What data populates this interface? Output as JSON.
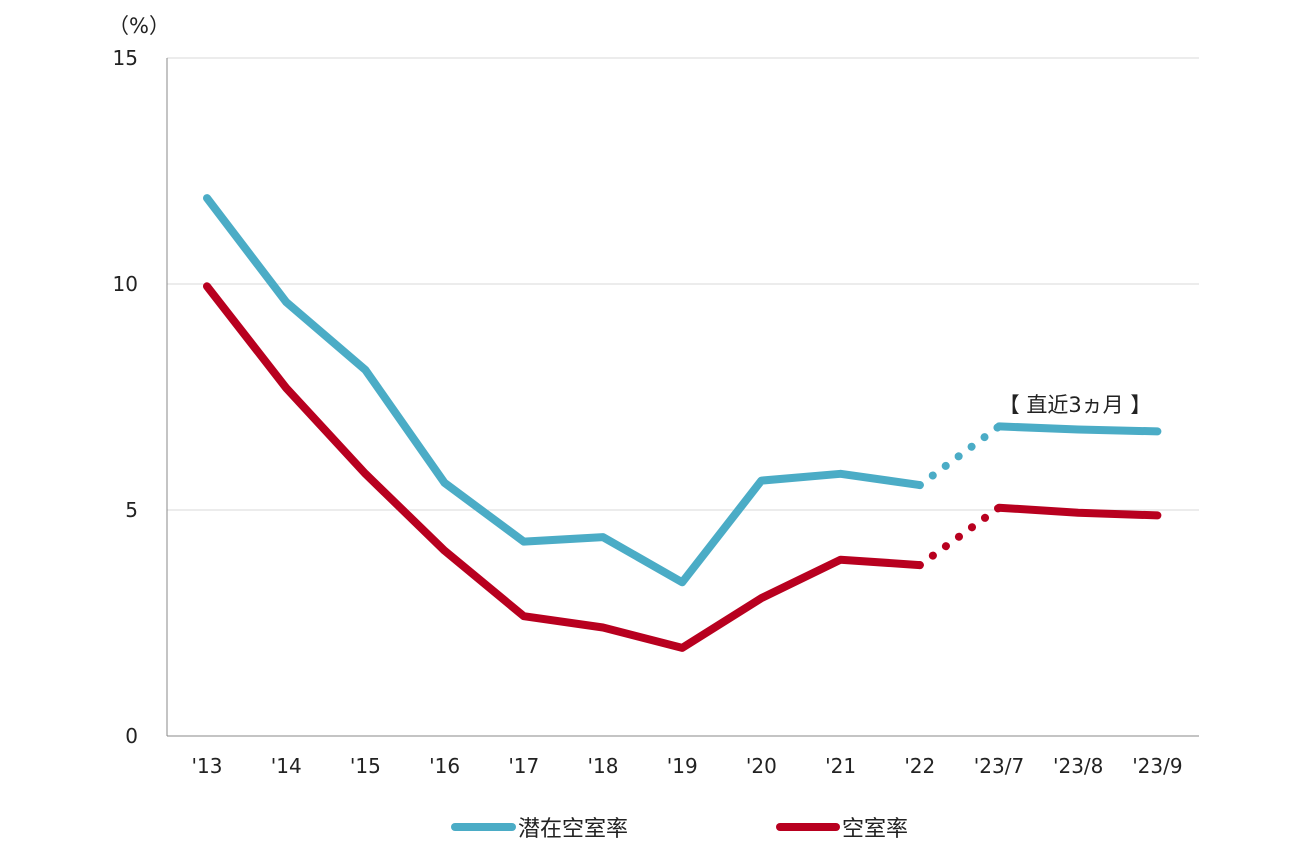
{
  "chart_data": {
    "type": "line",
    "unit_label": "（%）",
    "categories": [
      "'13",
      "'14",
      "'15",
      "'16",
      "'17",
      "'18",
      "'19",
      "'20",
      "'21",
      "'22",
      "'23/7",
      "'23/8",
      "'23/9"
    ],
    "ylim": [
      0,
      15
    ],
    "yticks": [
      0,
      5,
      10,
      15
    ],
    "grid": true,
    "legend_position": "bottom",
    "series": [
      {
        "name": "潜在空室率",
        "color": "#4BACC6",
        "values": [
          11.9,
          9.6,
          8.1,
          5.6,
          4.3,
          4.4,
          3.4,
          5.65,
          5.8,
          5.55,
          6.85,
          6.78,
          6.74
        ]
      },
      {
        "name": "空室率",
        "color": "#B8001F",
        "values": [
          9.95,
          7.7,
          5.8,
          4.1,
          2.65,
          2.4,
          1.95,
          3.05,
          3.9,
          3.78,
          5.05,
          4.94,
          4.88
        ]
      }
    ],
    "annotation": "【 直近3ヵ月 】"
  }
}
